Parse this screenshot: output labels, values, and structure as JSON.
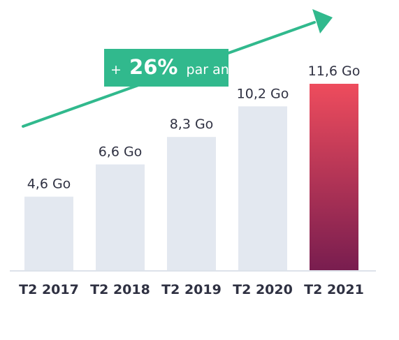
{
  "chart_data": {
    "type": "bar",
    "categories": [
      "T2 2017",
      "T2 2018",
      "T2 2019",
      "T2 2020",
      "T2 2021"
    ],
    "values": [
      4.6,
      6.6,
      8.3,
      10.2,
      11.6
    ],
    "value_labels": [
      "4,6 Go",
      "6,6 Go",
      "8,3 Go",
      "10,2 Go",
      "11,6 Go"
    ],
    "ylim": [
      0,
      11.6
    ],
    "highlight_index": 4,
    "grid": false,
    "annotation": {
      "prefix": "+",
      "value": "26%",
      "suffix": "par an"
    }
  },
  "colors": {
    "bar": "#e3e8f0",
    "highlight_top": "#ee4c5d",
    "highlight_bottom": "#781d4f",
    "arrow": "#31b98d",
    "text": "#2f3142",
    "baseline": "#dde2ea"
  }
}
